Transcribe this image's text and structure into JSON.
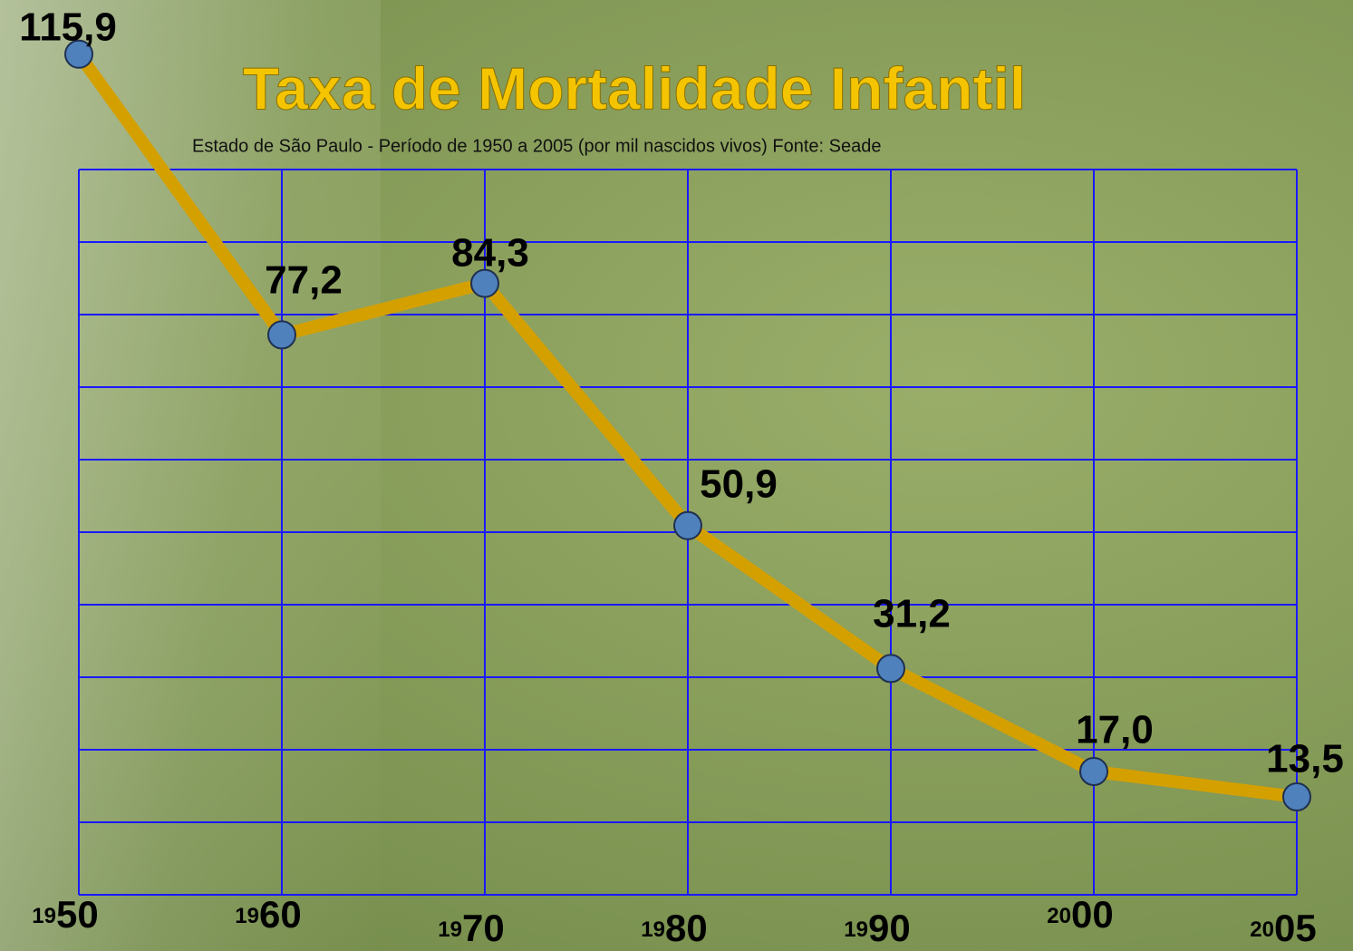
{
  "chart_data": {
    "type": "line",
    "title": "Taxa de Mortalidade Infantil",
    "subtitle": "Estado de São Paulo - Período de 1950 a 2005 (por mil nascidos vivos) Fonte: Seade",
    "categories": [
      "1950",
      "1960",
      "1970",
      "1980",
      "1990",
      "2000",
      "2005"
    ],
    "values": [
      115.9,
      77.2,
      84.3,
      50.9,
      31.2,
      17.0,
      13.5
    ],
    "value_labels": [
      "115,9",
      "77,2",
      "84,3",
      "50,9",
      "31,2",
      "17,0",
      "13,5"
    ],
    "color": "#d4a000",
    "marker_color": "#4f81bd",
    "grid_color": "#1a1aff",
    "ylim": [
      0,
      100
    ],
    "yticks": [
      0,
      10,
      20,
      30,
      40,
      50,
      60,
      70,
      80,
      90,
      100
    ],
    "grid": true
  }
}
